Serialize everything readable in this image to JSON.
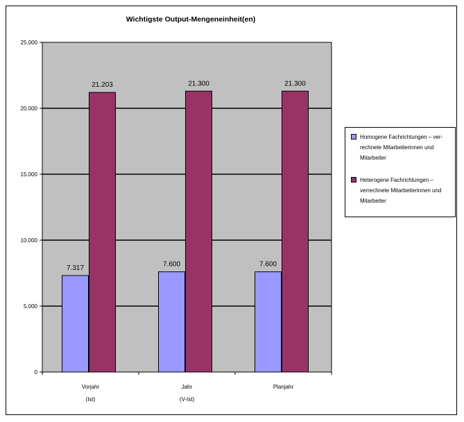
{
  "chart_data": {
    "type": "bar",
    "title": "Wichtigste Output-Mengeneinheit(en)",
    "categories": [
      [
        "Vorjahr",
        "(Ist)"
      ],
      [
        "Jahr",
        "(V-Ist)"
      ],
      [
        "Planjahr"
      ]
    ],
    "series": [
      {
        "name": "Homogene Fachrichtungen – ver-rechnete Mitarbeiterinnen und Mitarbeiter",
        "values": [
          7317,
          7600,
          7600
        ],
        "labels": [
          "7.317",
          "7.600",
          "7.600"
        ],
        "color": "#9999ff"
      },
      {
        "name": "Heterogene Fachrichtungen – verrechnete Mitarbeiterinnen und Mitarbeiter",
        "values": [
          21203,
          21300,
          21300
        ],
        "labels": [
          "21.203",
          "21.300",
          "21.300"
        ],
        "color": "#993366"
      }
    ],
    "ylim": [
      0,
      25000
    ],
    "yticks": [
      0,
      5000,
      10000,
      15000,
      20000,
      25000
    ],
    "ytick_labels": [
      "0",
      "5.000",
      "10.000",
      "15.000",
      "20.000",
      "25.000"
    ],
    "plot_background": "#c0c0c0",
    "grid": true,
    "legend_position": "right"
  }
}
